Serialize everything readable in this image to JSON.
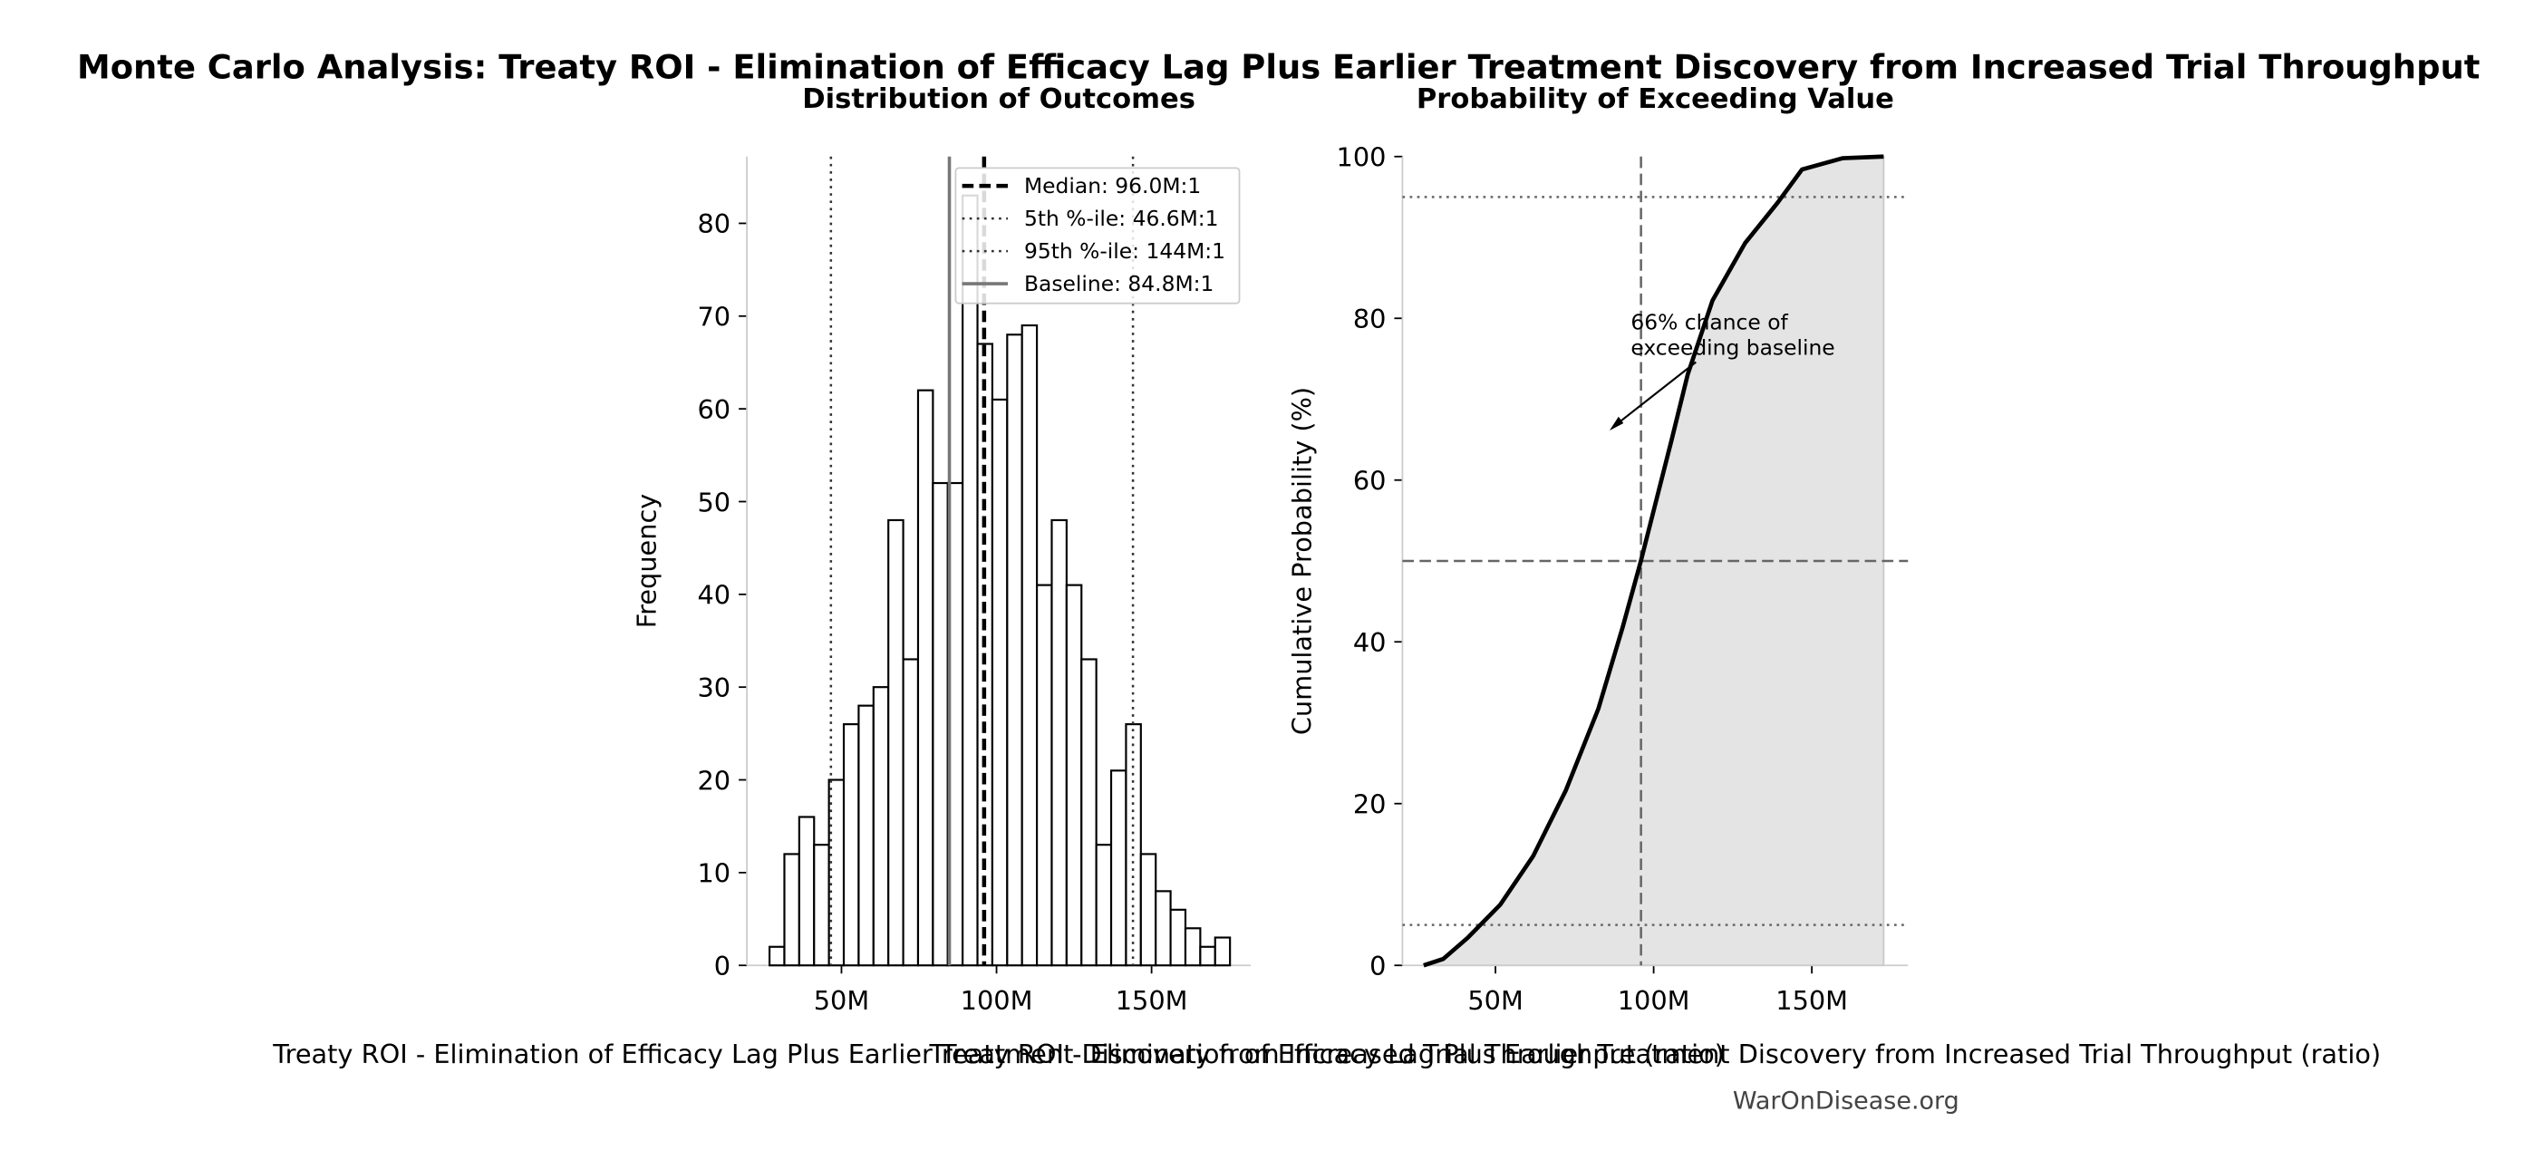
{
  "title": "Monte Carlo Analysis: Treaty ROI - Elimination of Efficacy Lag Plus Earlier Treatment Discovery from Increased Trial Throughput",
  "footer": "WarOnDisease.org",
  "chart_data": [
    {
      "type": "histogram",
      "title": "Distribution of Outcomes",
      "x_label": "Treaty ROI - Elimination of Efficacy Lag Plus Earlier Treatment Discovery from Increased Trial Throughput (ratio)",
      "y_label": "Frequency",
      "bins": [
        26800000,
        31590000,
        36380000,
        41170000,
        45960000,
        50750000,
        55540000,
        60330000,
        65120000,
        69910000,
        74700000,
        79490000,
        84280000,
        89070000,
        93860000,
        98650000,
        103440000,
        108230000,
        113020000,
        117810000,
        122600000,
        127390000,
        132180000,
        136970000,
        141760000,
        146550000,
        151340000,
        156130000,
        160920000,
        165710000,
        170500000,
        175290000
      ],
      "values": [
        2,
        12,
        16,
        13,
        20,
        26,
        28,
        30,
        48,
        33,
        62,
        52,
        52,
        83,
        67,
        61,
        68,
        69,
        41,
        48,
        41,
        33,
        13,
        21,
        26,
        12,
        8,
        6,
        4,
        2,
        3
      ],
      "color": "#ffffff",
      "edge_color": "#000000",
      "xlim": [
        19500000,
        182000000
      ],
      "ylim": [
        0,
        87.2
      ],
      "xticks": [
        {
          "value": 50000000,
          "label": "50M"
        },
        {
          "value": 100000000,
          "label": "100M"
        },
        {
          "value": 150000000,
          "label": "150M"
        }
      ],
      "yticks": [
        0,
        10,
        20,
        30,
        40,
        50,
        60,
        70,
        80
      ],
      "legend_position": "upper right",
      "reference_lines": [
        {
          "name": "Median: 96.0M:1",
          "value": 96000000,
          "orientation": "vertical",
          "style": "dashed",
          "color": "#000000"
        },
        {
          "name": "5th %-ile: 46.6M:1",
          "value": 46600000,
          "orientation": "vertical",
          "style": "dotted",
          "color": "#333333"
        },
        {
          "name": "95th %-ile: 144M:1",
          "value": 144000000,
          "orientation": "vertical",
          "style": "dotted",
          "color": "#333333"
        },
        {
          "name": "Baseline: 84.8M:1",
          "value": 84800000,
          "orientation": "vertical",
          "style": "solid",
          "color": "#777777"
        }
      ]
    },
    {
      "type": "area",
      "title": "Probability of Exceeding Value",
      "x_label": "Treaty ROI - Elimination of Efficacy Lag Plus Earlier Treatment Discovery from Increased Trial Throughput (ratio)",
      "y_label": "Cumulative Probability (%)",
      "x": [
        27300000,
        33500000,
        41200000,
        51500000,
        61900000,
        72200000,
        82500000,
        90200000,
        95900000,
        100500000,
        105700000,
        110800000,
        118600000,
        128900000,
        139200000,
        146900000,
        159800000,
        172700000
      ],
      "values": [
        0,
        0.8,
        3.4,
        7.5,
        13.5,
        21.6,
        31.7,
        41.8,
        49.9,
        57,
        65,
        73.1,
        82.2,
        89.3,
        94.3,
        98.4,
        99.8,
        100
      ],
      "color": "#000000",
      "fill_color": "#e4e4e4",
      "xlim": [
        20600000,
        180400000
      ],
      "ylim": [
        0,
        100
      ],
      "xticks": [
        {
          "value": 50000000,
          "label": "50M"
        },
        {
          "value": 100000000,
          "label": "100M"
        },
        {
          "value": 150000000,
          "label": "150M"
        }
      ],
      "yticks": [
        0,
        20,
        40,
        60,
        80,
        100
      ],
      "reference_lines": [
        {
          "value": 96000000,
          "orientation": "vertical",
          "style": "dashed",
          "color": "#666666"
        },
        {
          "value": 95,
          "orientation": "horizontal",
          "style": "dotted",
          "color": "#666666"
        },
        {
          "value": 50,
          "orientation": "horizontal",
          "style": "dashed",
          "color": "#666666"
        },
        {
          "value": 5,
          "orientation": "horizontal",
          "style": "dotted",
          "color": "#666666"
        }
      ],
      "annotations": [
        {
          "text": "66% chance of\nexceeding baseline"
        }
      ]
    }
  ]
}
